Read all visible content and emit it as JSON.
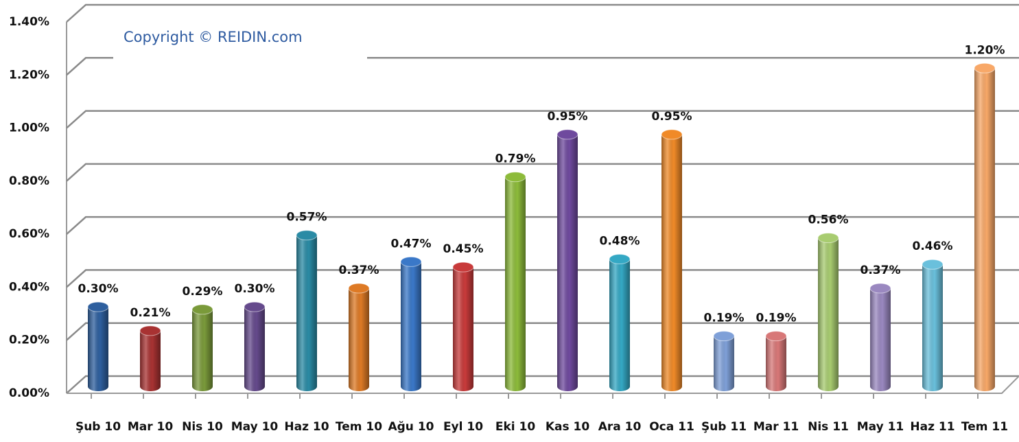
{
  "chart_data": {
    "type": "bar",
    "annotation": "Copyright © REIDIN.com",
    "categories": [
      "Şub 10",
      "Mar 10",
      "Nis 10",
      "May 10",
      "Haz 10",
      "Tem 10",
      "Ağu 10",
      "Eyl 10",
      "Eki 10",
      "Kas 10",
      "Ara 10",
      "Oca 11",
      "Şub 11",
      "Mar 11",
      "Nis 11",
      "May 11",
      "Haz 11",
      "Tem 11"
    ],
    "values": [
      0.3,
      0.21,
      0.29,
      0.3,
      0.57,
      0.37,
      0.47,
      0.45,
      0.79,
      0.95,
      0.48,
      0.95,
      0.19,
      0.19,
      0.56,
      0.37,
      0.46,
      1.2
    ],
    "value_labels": [
      "0.30%",
      "0.21%",
      "0.29%",
      "0.30%",
      "0.57%",
      "0.37%",
      "0.47%",
      "0.45%",
      "0.79%",
      "0.95%",
      "0.48%",
      "0.95%",
      "0.19%",
      "0.19%",
      "0.56%",
      "0.37%",
      "0.46%",
      "1.20%"
    ],
    "colors": [
      "#2e5f9e",
      "#a83232",
      "#7a9a3a",
      "#654a8c",
      "#2a8ba5",
      "#de7a25",
      "#3a78c8",
      "#c83a3a",
      "#8dbb3a",
      "#6f4a9e",
      "#34a8c4",
      "#f08a28",
      "#7fa0d8",
      "#d87878",
      "#a8cc70",
      "#9a88c0",
      "#6ac0dc",
      "#f8a868"
    ],
    "ylim": [
      0,
      1.4
    ],
    "yticks": [
      {
        "value": 0,
        "label": "0.00%"
      },
      {
        "value": 0.2,
        "label": "0.20%"
      },
      {
        "value": 0.4,
        "label": "0.40%"
      },
      {
        "value": 0.6,
        "label": "0.60%"
      },
      {
        "value": 0.8,
        "label": "0.80%"
      },
      {
        "value": 1.0,
        "label": "1.00%"
      },
      {
        "value": 1.2,
        "label": "1.20%"
      },
      {
        "value": 1.4,
        "label": "1.40%"
      }
    ],
    "grid": true
  }
}
